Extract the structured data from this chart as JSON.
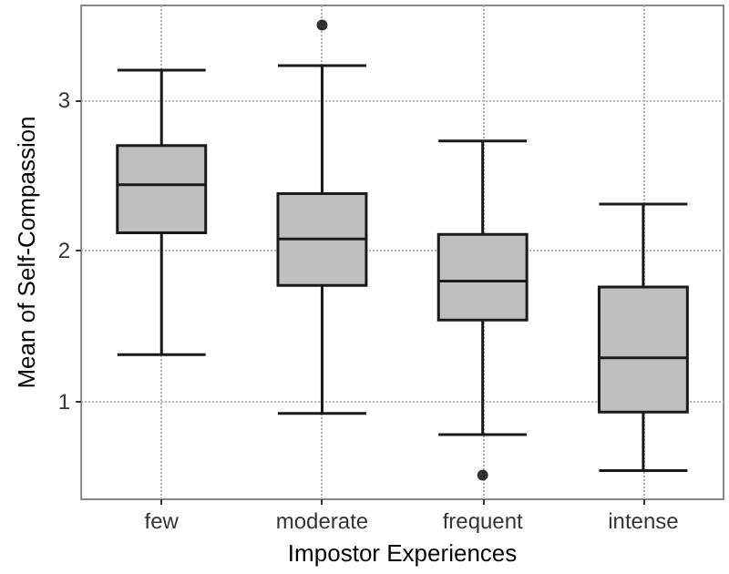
{
  "chart_data": {
    "type": "box",
    "xlabel": "Impostor Experiences",
    "ylabel": "Mean of Self-Compassion",
    "categories": [
      "few",
      "moderate",
      "frequent",
      "intense"
    ],
    "boxes": [
      {
        "low": 1.31,
        "q1": 2.12,
        "median": 2.44,
        "q3": 2.7,
        "high": 3.2
      },
      {
        "low": 0.92,
        "q1": 1.77,
        "median": 2.08,
        "q3": 2.38,
        "high": 3.23,
        "outliers": [
          3.5
        ]
      },
      {
        "low": 0.78,
        "q1": 1.54,
        "median": 1.8,
        "q3": 2.11,
        "high": 2.73,
        "outliers": [
          0.51
        ]
      },
      {
        "low": 0.54,
        "q1": 0.93,
        "median": 1.29,
        "q3": 1.76,
        "high": 2.31
      }
    ],
    "color": "#bfbfbf",
    "ylim": [
      0.35,
      3.63
    ],
    "yticks": [
      1,
      2,
      3
    ],
    "grid": true
  }
}
